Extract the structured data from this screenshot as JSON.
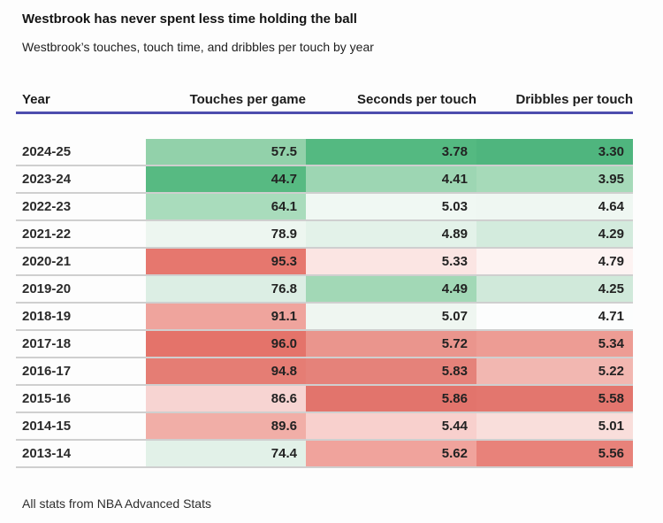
{
  "title": "Westbrook has never spent less time holding the ball",
  "subtitle": "Westbrook’s touches, touch time, and dribbles per touch by year",
  "footer_note": "All stats from NBA Advanced Stats",
  "accent_underline_color": "#4d4dae",
  "row_divider_color": "#cfcfcf",
  "columns": {
    "year": "Year",
    "touches": "Touches per game",
    "seconds": "Seconds per touch",
    "dribbles": "Dribbles per touch"
  },
  "rows": [
    {
      "year": "2024-25",
      "touches": "57.5",
      "seconds": "3.78",
      "dribbles": "3.30",
      "colors": {
        "touches": "#92d1aa",
        "seconds": "#54b981",
        "dribbles": "#4fb57e"
      }
    },
    {
      "year": "2023-24",
      "touches": "44.7",
      "seconds": "4.41",
      "dribbles": "3.95",
      "colors": {
        "touches": "#57ba82",
        "seconds": "#9dd6b3",
        "dribbles": "#a6dab9"
      }
    },
    {
      "year": "2022-23",
      "touches": "64.1",
      "seconds": "5.03",
      "dribbles": "4.64",
      "colors": {
        "touches": "#a9dcbc",
        "seconds": "#f0f8f3",
        "dribbles": "#eff7f2"
      }
    },
    {
      "year": "2021-22",
      "touches": "78.9",
      "seconds": "4.89",
      "dribbles": "4.29",
      "colors": {
        "touches": "#edf6f0",
        "seconds": "#e3f2e9",
        "dribbles": "#d3ebdd"
      }
    },
    {
      "year": "2020-21",
      "touches": "95.3",
      "seconds": "5.33",
      "dribbles": "4.79",
      "colors": {
        "touches": "#e6776e",
        "seconds": "#fbe5e3",
        "dribbles": "#fdf3f2"
      }
    },
    {
      "year": "2019-20",
      "touches": "76.8",
      "seconds": "4.49",
      "dribbles": "4.25",
      "colors": {
        "touches": "#dceee4",
        "seconds": "#a2d8b6",
        "dribbles": "#d0e9da"
      }
    },
    {
      "year": "2018-19",
      "touches": "91.1",
      "seconds": "5.07",
      "dribbles": "4.71",
      "colors": {
        "touches": "#efa49d",
        "seconds": "#eff6f1",
        "dribbles": "#fcfdfd"
      }
    },
    {
      "year": "2017-18",
      "touches": "96.0",
      "seconds": "5.72",
      "dribbles": "5.34",
      "colors": {
        "touches": "#e4736a",
        "seconds": "#ea958d",
        "dribbles": "#ed9c94"
      }
    },
    {
      "year": "2016-17",
      "touches": "94.8",
      "seconds": "5.83",
      "dribbles": "5.22",
      "colors": {
        "touches": "#e57d74",
        "seconds": "#e5827a",
        "dribbles": "#f2b7b1"
      }
    },
    {
      "year": "2015-16",
      "touches": "86.6",
      "seconds": "5.86",
      "dribbles": "5.58",
      "colors": {
        "touches": "#f7d4d2",
        "seconds": "#e2746c",
        "dribbles": "#e3766e"
      }
    },
    {
      "year": "2014-15",
      "touches": "89.6",
      "seconds": "5.44",
      "dribbles": "5.01",
      "colors": {
        "touches": "#f1aea7",
        "seconds": "#f8d0cd",
        "dribbles": "#f9dedb"
      }
    },
    {
      "year": "2013-14",
      "touches": "74.4",
      "seconds": "5.62",
      "dribbles": "5.56",
      "colors": {
        "touches": "#e2f1e8",
        "seconds": "#f0a39c",
        "dribbles": "#e8827a"
      }
    }
  ],
  "chart_data": {
    "type": "heatmap",
    "title": "Westbrook has never spent less time holding the ball",
    "subtitle": "Westbrook’s touches, touch time, and dribbles per touch by year",
    "categories": [
      "2024-25",
      "2023-24",
      "2022-23",
      "2021-22",
      "2020-21",
      "2019-20",
      "2018-19",
      "2017-18",
      "2016-17",
      "2015-16",
      "2014-15",
      "2013-14"
    ],
    "series": [
      {
        "name": "Touches per game",
        "values": [
          57.5,
          44.7,
          64.1,
          78.9,
          95.3,
          76.8,
          91.1,
          96.0,
          94.8,
          86.6,
          89.6,
          74.4
        ]
      },
      {
        "name": "Seconds per touch",
        "values": [
          3.78,
          4.41,
          5.03,
          4.89,
          5.33,
          4.49,
          5.07,
          5.72,
          5.83,
          5.86,
          5.44,
          5.62
        ]
      },
      {
        "name": "Dribbles per touch",
        "values": [
          3.3,
          3.95,
          4.64,
          4.29,
          4.79,
          4.25,
          4.71,
          5.34,
          5.22,
          5.58,
          5.01,
          5.56
        ]
      }
    ],
    "color_scale": {
      "low_color": "#54b981",
      "mid_color": "#ffffff",
      "high_color": "#e4736a",
      "meaning": "green = lower value, red = higher value, scaled per column"
    },
    "legend_position": "none",
    "grid": "row dividers only",
    "source_note": "All stats from NBA Advanced Stats"
  }
}
